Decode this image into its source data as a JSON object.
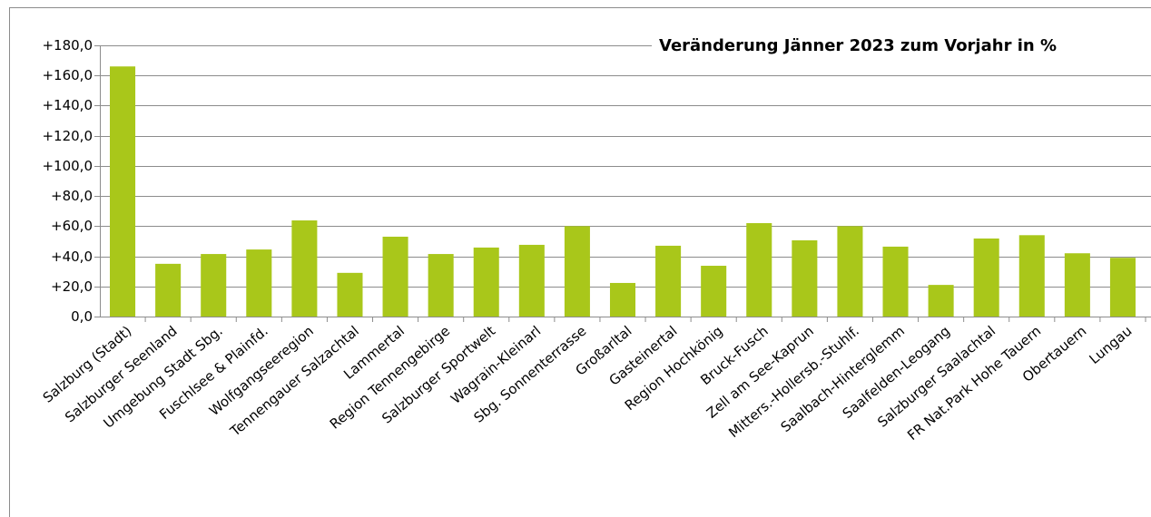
{
  "chart_data": {
    "type": "bar",
    "title": "Veränderung Jänner 2023 zum Vorjahr in %",
    "categories": [
      "Salzburg (Stadt)",
      "Salzburger Seenland",
      "Umgebung Stadt Sbg.",
      "Fuschlsee & Plainfd.",
      "Wolfgangseeregion",
      "Tennengauer Salzachtal",
      "Lammertal",
      "Region Tennengebirge",
      "Salzburger Sportwelt",
      "Wagrain-Kleinarl",
      "Sbg. Sonnenterrasse",
      "Großarltal",
      "Gasteinertal",
      "Region Hochkönig",
      "Bruck-Fusch",
      "Zell am See-Kaprun",
      "Mitters.-Hollersb.-Stuhlf.",
      "Saalbach-Hinterglemm",
      "Saalfelden-Leogang",
      "Salzburger Saalachtal",
      "FR Nat.Park Hohe Tauern",
      "Obertauern",
      "Lungau"
    ],
    "values": [
      166,
      35,
      41.5,
      44.5,
      63.8,
      29,
      53,
      41.5,
      45.8,
      47.6,
      60,
      22.3,
      47,
      33.7,
      62,
      50.6,
      60,
      46.4,
      21,
      51.8,
      54,
      42,
      39
    ],
    "color": "#a9c71a",
    "ylim": [
      0,
      180
    ],
    "yticks": [
      {
        "value": 0,
        "label": "0,0"
      },
      {
        "value": 20,
        "label": "+20,0"
      },
      {
        "value": 40,
        "label": "+40,0"
      },
      {
        "value": 60,
        "label": "+60,0"
      },
      {
        "value": 80,
        "label": "+80,0"
      },
      {
        "value": 100,
        "label": "+100,0"
      },
      {
        "value": 120,
        "label": "+120,0"
      },
      {
        "value": 140,
        "label": "+140,0"
      },
      {
        "value": 160,
        "label": "+160,0"
      },
      {
        "value": 180,
        "label": "+180,0"
      }
    ],
    "grid": true
  }
}
